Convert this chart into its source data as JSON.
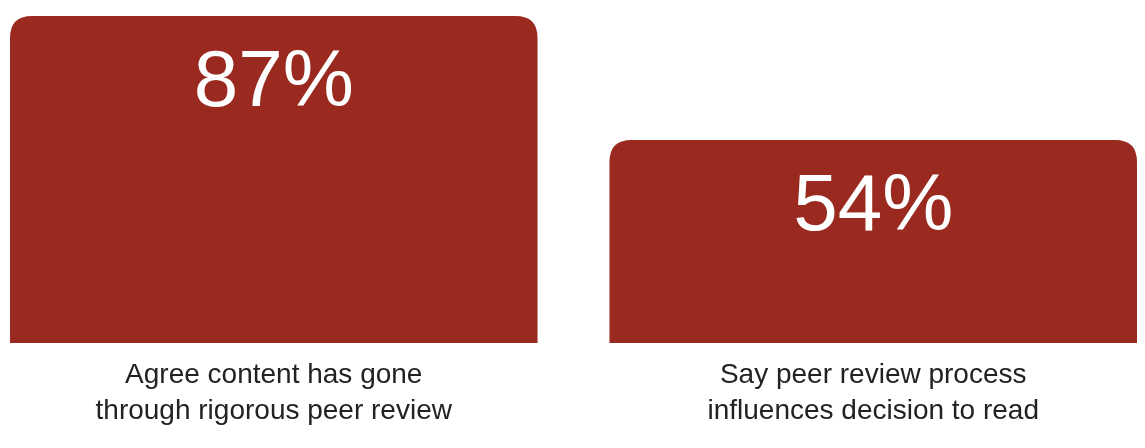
{
  "chart_data": {
    "type": "bar",
    "categories": [
      "Agree content has gone through rigorous peer review",
      "Say peer review process influences decision to read"
    ],
    "values": [
      87,
      54
    ],
    "value_labels": [
      "87%",
      "54%"
    ],
    "color": "#9a2a20"
  }
}
